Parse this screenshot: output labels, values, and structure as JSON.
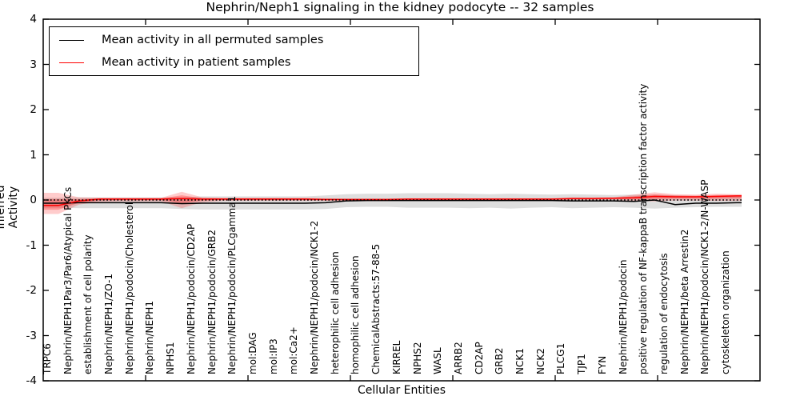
{
  "figure": {
    "title": "Nephrin/Neph1 signaling in the kidney podocyte -- 32 samples",
    "xlabel": "Cellular Entities",
    "ylabel": "Inferred Activity",
    "legend": {
      "permuted_label": "Mean activity in all permuted samples",
      "patient_label": "Mean activity in patient samples"
    },
    "colors": {
      "permuted_line": "#000000",
      "patient_line": "#ff0000",
      "permuted_band": "rgba(0,0,0,0.13)",
      "patient_band": "rgba(255,0,0,0.20)",
      "zero_line": "#000000"
    }
  },
  "chart_data": {
    "type": "line",
    "title": "Nephrin/Neph1 signaling in the kidney podocyte -- 32 samples",
    "xlabel": "Cellular Entities",
    "ylabel": "Inferred Activity",
    "ylim": [
      -4,
      4
    ],
    "yticks": [
      4,
      3,
      2,
      1,
      0,
      -1,
      -2,
      -3,
      -4
    ],
    "grid": false,
    "legend_position": "upper left",
    "zero_reference_line": 0,
    "categories": [
      "TRPC6",
      "Nephrin/NEPH1Par3/Par6/Atypical PKCs",
      "establishment of cell polarity",
      "Nephrin/NEPH1/ZO-1",
      "Nephrin/NEPH1/podocin/Cholesterol",
      "Nephrin/NEPH1",
      "NPHS1",
      "Nephrin/NEPH1/podocin/CD2AP",
      "Nephrin/NEPH1/podocin/GRB2",
      "Nephrin/NEPH1/podocin/PLCgamma1",
      "mol:DAG",
      "mol:IP3",
      "mol:Ca2+",
      "Nephrin/NEPH1/podocin/NCK1-2",
      "heterophilic cell adhesion",
      "homophilic cell adhesion",
      "ChemicalAbstracts:57-88-5",
      "KIRREL",
      "NPHS2",
      "WASL",
      "ARRB2",
      "CD2AP",
      "GRB2",
      "NCK1",
      "NCK2",
      "PLCG1",
      "TJP1",
      "FYN",
      "Nephrin/NEPH1/podocin",
      "positive regulation of NF-kappaB transcription factor activity",
      "regulation of endocytosis",
      "Nephrin/NEPH1/beta Arrestin2",
      "Nephrin/NEPH1/podocin/NCK1-2/N-WASP",
      "cytoskeleton organization"
    ],
    "series": [
      {
        "name": "Mean activity in all permuted samples",
        "color": "#000000",
        "style": "solid",
        "values": [
          -0.07,
          -0.06,
          -0.06,
          -0.06,
          -0.06,
          -0.06,
          -0.08,
          -0.07,
          -0.07,
          -0.07,
          -0.07,
          -0.07,
          -0.07,
          -0.06,
          -0.02,
          -0.01,
          -0.01,
          -0.01,
          -0.01,
          -0.01,
          -0.01,
          -0.01,
          -0.01,
          -0.01,
          -0.01,
          -0.02,
          -0.02,
          -0.02,
          -0.03,
          0.0,
          -0.1,
          -0.07,
          -0.07,
          -0.06
        ]
      },
      {
        "name": "Mean activity in patient samples",
        "color": "#ff0000",
        "style": "solid",
        "values": [
          -0.12,
          -0.02,
          0.02,
          0.02,
          0.02,
          0.02,
          0.03,
          0.02,
          0.02,
          0.02,
          0.02,
          0.02,
          0.02,
          0.01,
          0.01,
          0.01,
          0.01,
          0.02,
          0.02,
          0.02,
          0.02,
          0.02,
          0.02,
          0.02,
          0.02,
          0.03,
          0.03,
          0.04,
          0.05,
          0.08,
          0.07,
          0.07,
          0.08,
          0.09
        ]
      }
    ],
    "bands": [
      {
        "name": "permuted-samples-range",
        "color": "rgba(0,0,0,0.13)",
        "hi": [
          0.05,
          0.06,
          0.06,
          0.06,
          0.06,
          0.06,
          0.06,
          0.08,
          0.08,
          0.08,
          0.08,
          0.08,
          0.08,
          0.1,
          0.13,
          0.14,
          0.14,
          0.15,
          0.15,
          0.15,
          0.14,
          0.13,
          0.14,
          0.13,
          0.12,
          0.13,
          0.12,
          0.11,
          0.12,
          0.11,
          0.1,
          0.09,
          0.09,
          0.08
        ],
        "lo": [
          -0.17,
          -0.18,
          -0.18,
          -0.18,
          -0.18,
          -0.18,
          -0.2,
          -0.21,
          -0.21,
          -0.21,
          -0.21,
          -0.21,
          -0.21,
          -0.2,
          -0.16,
          -0.15,
          -0.15,
          -0.17,
          -0.17,
          -0.17,
          -0.18,
          -0.17,
          -0.19,
          -0.17,
          -0.16,
          -0.18,
          -0.17,
          -0.16,
          -0.17,
          -0.19,
          -0.17,
          -0.16,
          -0.15,
          -0.15
        ]
      },
      {
        "name": "patient-samples-range",
        "color": "rgba(255,0,0,0.20)",
        "hi": [
          0.16,
          0.06,
          0.05,
          0.05,
          0.05,
          0.05,
          0.18,
          0.06,
          0.05,
          0.05,
          0.05,
          0.05,
          0.05,
          0.04,
          0.03,
          0.03,
          0.03,
          0.04,
          0.04,
          0.04,
          0.04,
          0.04,
          0.04,
          0.04,
          0.04,
          0.06,
          0.06,
          0.06,
          0.12,
          0.17,
          0.13,
          0.12,
          0.14,
          0.13
        ],
        "lo": [
          -0.31,
          -0.1,
          -0.04,
          -0.03,
          -0.03,
          -0.03,
          -0.18,
          -0.05,
          -0.02,
          -0.02,
          -0.02,
          -0.02,
          -0.02,
          -0.02,
          -0.02,
          -0.02,
          -0.02,
          -0.01,
          -0.01,
          -0.01,
          -0.01,
          -0.01,
          -0.01,
          -0.01,
          -0.01,
          0.0,
          0.0,
          0.0,
          -0.02,
          -0.03,
          -0.01,
          -0.01,
          -0.02,
          -0.02
        ]
      }
    ]
  }
}
